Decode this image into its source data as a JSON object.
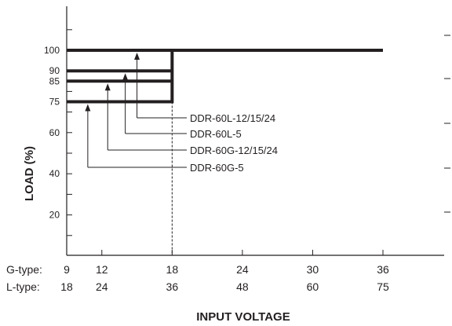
{
  "chart_data": {
    "type": "line",
    "title": "",
    "xlabel": "INPUT VOLTAGE",
    "ylabel": "LOAD (%)",
    "x_rows": [
      {
        "label": "G-type:",
        "ticks": [
          "9",
          "12",
          "18",
          "24",
          "30",
          "36"
        ]
      },
      {
        "label": "L-type:",
        "ticks": [
          "18",
          "24",
          "36",
          "48",
          "60",
          "75"
        ]
      }
    ],
    "x_ticks_gtype": [
      9,
      12,
      18,
      24,
      30,
      36
    ],
    "xlim_gtype": [
      9,
      45
    ],
    "y_ticks": [
      100,
      90,
      85,
      75,
      60,
      40,
      20
    ],
    "y_tick_labels": [
      "100",
      "90",
      "85",
      "75",
      "60",
      "40",
      "20"
    ],
    "ylim": [
      0,
      120
    ],
    "series": [
      {
        "name": "DDR-60L-12/15/24",
        "x_gtype": [
          9,
          36
        ],
        "values": [
          100,
          100
        ]
      },
      {
        "name": "DDR-60L-5",
        "x_gtype": [
          9,
          18
        ],
        "values": [
          90,
          90
        ]
      },
      {
        "name": "DDR-60G-12/15/24",
        "x_gtype": [
          9,
          18
        ],
        "values": [
          85,
          85
        ]
      },
      {
        "name": "DDR-60G-5",
        "x_gtype": [
          9,
          18
        ],
        "values": [
          75,
          75
        ]
      }
    ],
    "vertical_reference": {
      "x_gtype": 18,
      "y_range": [
        75,
        100
      ]
    },
    "dashed_reference": {
      "x_gtype": 18
    },
    "annotations": [
      {
        "text": "DDR-60L-12/15/24",
        "arrow_x_gtype": 15.0,
        "points_to_y": 100
      },
      {
        "text": "DDR-60L-5",
        "arrow_x_gtype": 14.0,
        "points_to_y": 90
      },
      {
        "text": "DDR-60G-12/15/24",
        "arrow_x_gtype": 12.5,
        "points_to_y": 85
      },
      {
        "text": "DDR-60G-5",
        "arrow_x_gtype": 10.8,
        "points_to_y": 75
      }
    ],
    "grid": false,
    "legend": "none"
  }
}
